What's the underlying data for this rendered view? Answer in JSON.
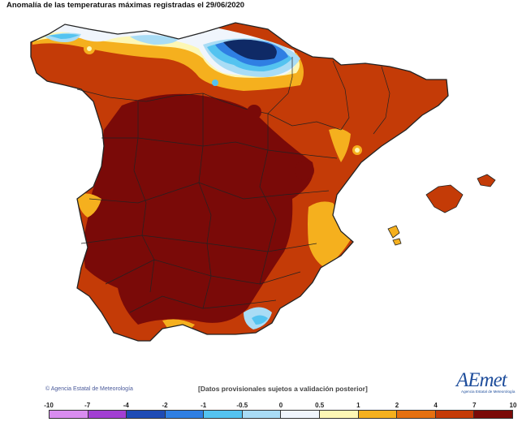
{
  "title": "Anomalía de las temperaturas máximas registradas el 29/06/2020",
  "credit": "Agencia Estatal de Meteorología",
  "disclaimer": "[Datos provisionales sujetos a validación posterior]",
  "logo": {
    "text": "AEmet",
    "subtitle": "Agencia Estatal de Meteorología"
  },
  "legend": {
    "ticks": [
      "-10",
      "-7",
      "-4",
      "-2",
      "-1",
      "-0.5",
      "0",
      "0.5",
      "1",
      "2",
      "4",
      "7",
      "10"
    ],
    "colors": [
      "#d98cf0",
      "#a23fd3",
      "#1e4bb5",
      "#2f7fe3",
      "#54c3f0",
      "#a9dcf5",
      "#f0f5fc",
      "#fdf7b5",
      "#f5b01e",
      "#e57010",
      "#c43b07",
      "#7a0a08"
    ]
  },
  "map": {
    "colors": {
      "sea": "#ffffff",
      "warm_1": "#f5b01e",
      "warm_2": "#e57010",
      "warm_3": "#c43b07",
      "warm_4": "#7a0a08",
      "neutral_pos": "#fdf7b5",
      "neutral_neg": "#f0f5fc",
      "cool_1": "#a9dcf5",
      "cool_2": "#54c3f0",
      "cool_3": "#2f7fe3",
      "cool_4": "#1e4bb5",
      "cool_5": "#0f2a66"
    }
  }
}
